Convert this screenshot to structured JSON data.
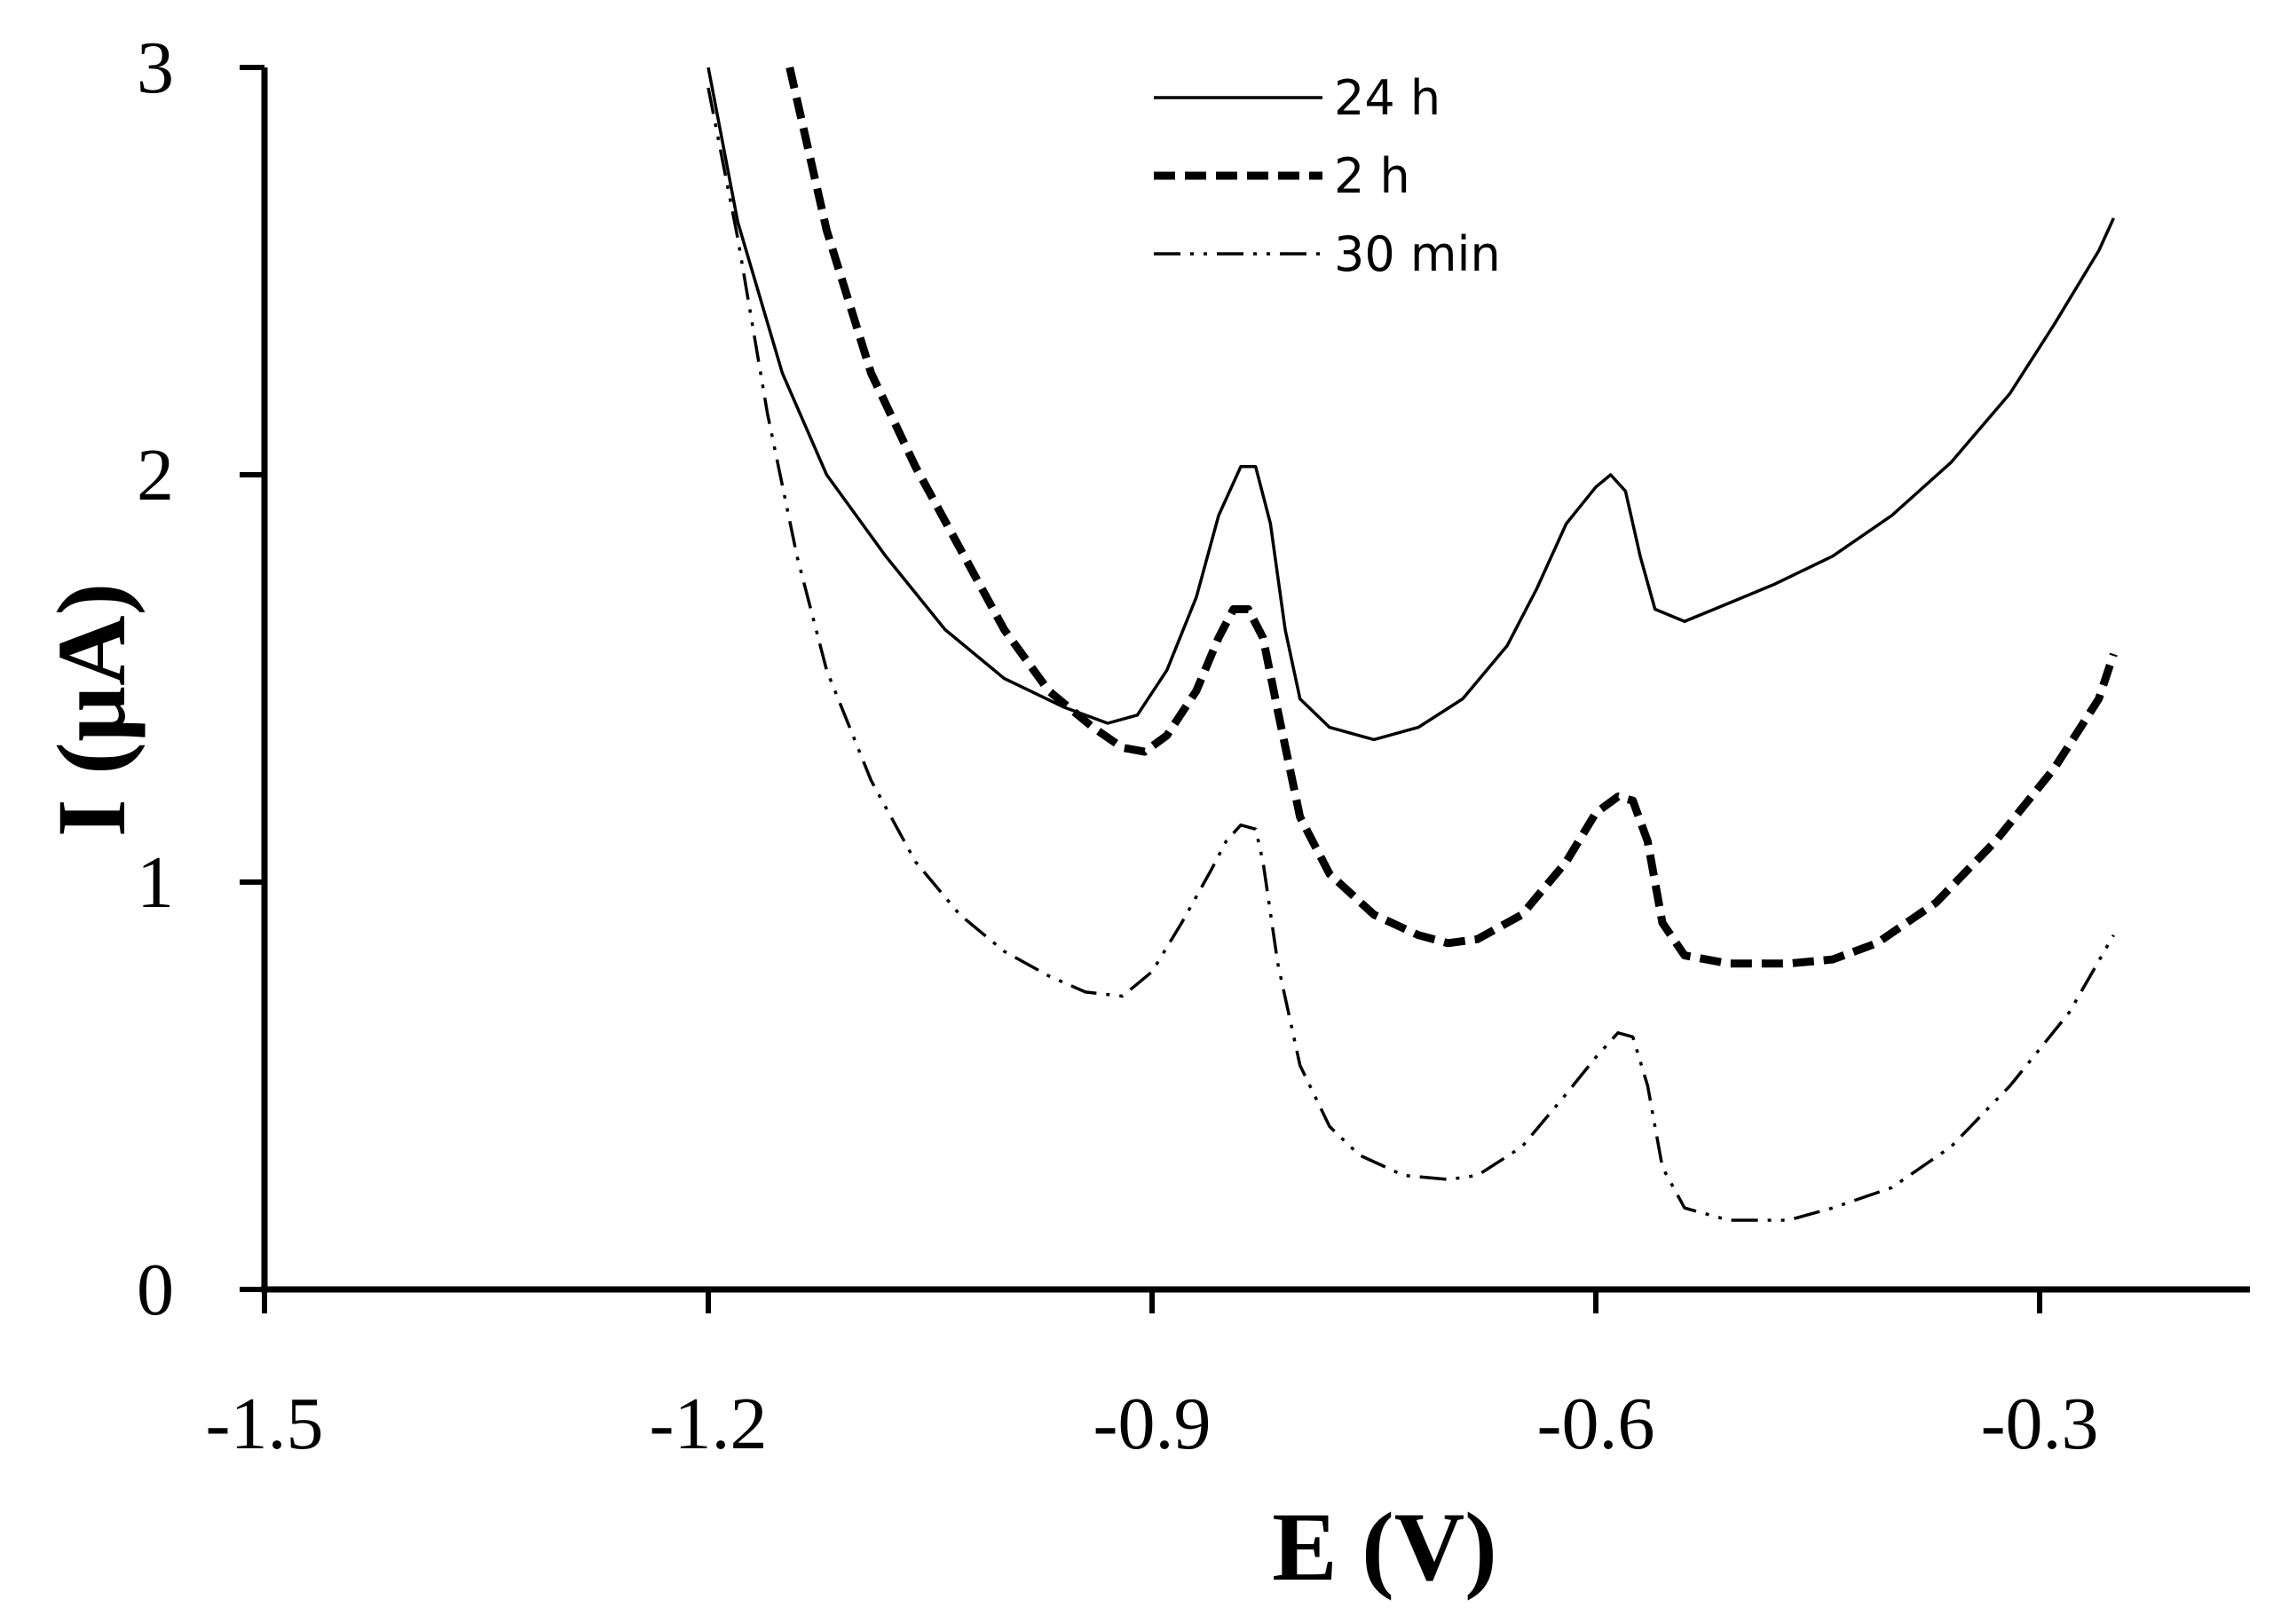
{
  "chart_data": {
    "type": "line",
    "title": "",
    "xlabel": "E (V)",
    "ylabel": "I (µA)",
    "xlim": [
      -1.5,
      -0.1
    ],
    "ylim": [
      0,
      3
    ],
    "xticks": [
      -1.5,
      -1.2,
      -0.9,
      -0.6,
      -0.3
    ],
    "xtick_labels": [
      "-1.5",
      "-1.2",
      "-0.9",
      "-0.6",
      "-0.3"
    ],
    "yticks": [
      0,
      1,
      2,
      3
    ],
    "ytick_labels": [
      "0",
      "1",
      "2",
      "3"
    ],
    "grid": false,
    "legend_position": "top-center",
    "series": [
      {
        "name": "24 h",
        "style": "solid",
        "color": "#000000",
        "points": [
          [
            -1.2,
            3.0
          ],
          [
            -1.18,
            2.62
          ],
          [
            -1.15,
            2.25
          ],
          [
            -1.12,
            2.0
          ],
          [
            -1.08,
            1.8
          ],
          [
            -1.04,
            1.62
          ],
          [
            -1.0,
            1.5
          ],
          [
            -0.96,
            1.43
          ],
          [
            -0.93,
            1.39
          ],
          [
            -0.91,
            1.41
          ],
          [
            -0.89,
            1.52
          ],
          [
            -0.87,
            1.7
          ],
          [
            -0.855,
            1.9
          ],
          [
            -0.84,
            2.02
          ],
          [
            -0.83,
            2.02
          ],
          [
            -0.82,
            1.88
          ],
          [
            -0.81,
            1.62
          ],
          [
            -0.8,
            1.45
          ],
          [
            -0.78,
            1.38
          ],
          [
            -0.75,
            1.35
          ],
          [
            -0.72,
            1.38
          ],
          [
            -0.69,
            1.45
          ],
          [
            -0.66,
            1.58
          ],
          [
            -0.64,
            1.72
          ],
          [
            -0.62,
            1.88
          ],
          [
            -0.6,
            1.97
          ],
          [
            -0.59,
            2.0
          ],
          [
            -0.58,
            1.96
          ],
          [
            -0.57,
            1.8
          ],
          [
            -0.56,
            1.67
          ],
          [
            -0.54,
            1.64
          ],
          [
            -0.52,
            1.67
          ],
          [
            -0.48,
            1.73
          ],
          [
            -0.44,
            1.8
          ],
          [
            -0.4,
            1.9
          ],
          [
            -0.36,
            2.03
          ],
          [
            -0.32,
            2.2
          ],
          [
            -0.29,
            2.37
          ],
          [
            -0.26,
            2.55
          ],
          [
            -0.25,
            2.63
          ]
        ]
      },
      {
        "name": "2 h",
        "style": "dashed",
        "color": "#000000",
        "points": [
          [
            -1.145,
            3.0
          ],
          [
            -1.12,
            2.6
          ],
          [
            -1.09,
            2.25
          ],
          [
            -1.06,
            2.02
          ],
          [
            -1.03,
            1.82
          ],
          [
            -1.0,
            1.62
          ],
          [
            -0.97,
            1.47
          ],
          [
            -0.94,
            1.38
          ],
          [
            -0.92,
            1.33
          ],
          [
            -0.905,
            1.32
          ],
          [
            -0.89,
            1.36
          ],
          [
            -0.87,
            1.47
          ],
          [
            -0.855,
            1.6
          ],
          [
            -0.845,
            1.67
          ],
          [
            -0.835,
            1.67
          ],
          [
            -0.825,
            1.6
          ],
          [
            -0.815,
            1.42
          ],
          [
            -0.8,
            1.16
          ],
          [
            -0.78,
            1.02
          ],
          [
            -0.75,
            0.92
          ],
          [
            -0.72,
            0.87
          ],
          [
            -0.7,
            0.85
          ],
          [
            -0.68,
            0.86
          ],
          [
            -0.65,
            0.92
          ],
          [
            -0.62,
            1.05
          ],
          [
            -0.6,
            1.17
          ],
          [
            -0.585,
            1.21
          ],
          [
            -0.575,
            1.2
          ],
          [
            -0.565,
            1.1
          ],
          [
            -0.555,
            0.9
          ],
          [
            -0.54,
            0.82
          ],
          [
            -0.51,
            0.8
          ],
          [
            -0.47,
            0.8
          ],
          [
            -0.44,
            0.81
          ],
          [
            -0.41,
            0.85
          ],
          [
            -0.37,
            0.95
          ],
          [
            -0.33,
            1.1
          ],
          [
            -0.29,
            1.28
          ],
          [
            -0.26,
            1.45
          ],
          [
            -0.25,
            1.56
          ]
        ]
      },
      {
        "name": "30 min",
        "style": "dash-dot-dot",
        "color": "#000000",
        "points": [
          [
            -1.2,
            2.95
          ],
          [
            -1.18,
            2.58
          ],
          [
            -1.16,
            2.15
          ],
          [
            -1.14,
            1.8
          ],
          [
            -1.12,
            1.52
          ],
          [
            -1.09,
            1.25
          ],
          [
            -1.06,
            1.05
          ],
          [
            -1.03,
            0.92
          ],
          [
            -1.0,
            0.83
          ],
          [
            -0.97,
            0.77
          ],
          [
            -0.945,
            0.73
          ],
          [
            -0.92,
            0.72
          ],
          [
            -0.9,
            0.78
          ],
          [
            -0.88,
            0.9
          ],
          [
            -0.86,
            1.03
          ],
          [
            -0.85,
            1.1
          ],
          [
            -0.84,
            1.14
          ],
          [
            -0.83,
            1.13
          ],
          [
            -0.825,
            1.05
          ],
          [
            -0.815,
            0.8
          ],
          [
            -0.8,
            0.55
          ],
          [
            -0.78,
            0.4
          ],
          [
            -0.76,
            0.33
          ],
          [
            -0.73,
            0.28
          ],
          [
            -0.7,
            0.27
          ],
          [
            -0.68,
            0.28
          ],
          [
            -0.65,
            0.35
          ],
          [
            -0.62,
            0.48
          ],
          [
            -0.6,
            0.57
          ],
          [
            -0.585,
            0.63
          ],
          [
            -0.575,
            0.62
          ],
          [
            -0.565,
            0.5
          ],
          [
            -0.555,
            0.3
          ],
          [
            -0.54,
            0.2
          ],
          [
            -0.51,
            0.17
          ],
          [
            -0.47,
            0.17
          ],
          [
            -0.44,
            0.2
          ],
          [
            -0.4,
            0.25
          ],
          [
            -0.36,
            0.35
          ],
          [
            -0.32,
            0.5
          ],
          [
            -0.28,
            0.68
          ],
          [
            -0.25,
            0.87
          ]
        ]
      }
    ]
  }
}
